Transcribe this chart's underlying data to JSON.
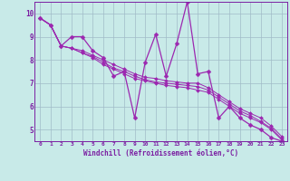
{
  "xlabel": "Windchill (Refroidissement éolien,°C)",
  "background_color": "#c8eae8",
  "grid_color": "#a0bcc8",
  "axis_color": "#7b1fa2",
  "line_color": "#9c27b0",
  "xlim": [
    -0.5,
    23.5
  ],
  "ylim": [
    4.5,
    10.5
  ],
  "yticks": [
    5,
    6,
    7,
    8,
    9,
    10
  ],
  "xticks": [
    0,
    1,
    2,
    3,
    4,
    5,
    6,
    7,
    8,
    9,
    10,
    11,
    12,
    13,
    14,
    15,
    16,
    17,
    18,
    19,
    20,
    21,
    22,
    23
  ],
  "series": [
    [
      9.8,
      9.5,
      8.6,
      9.0,
      9.0,
      8.4,
      8.1,
      7.3,
      7.5,
      5.5,
      7.9,
      9.1,
      7.3,
      8.7,
      10.5,
      7.4,
      7.5,
      5.5,
      6.0,
      5.5,
      5.2,
      5.0,
      4.65,
      4.5
    ],
    [
      9.8,
      9.5,
      8.6,
      8.5,
      8.4,
      8.2,
      8.0,
      7.8,
      7.6,
      7.4,
      7.25,
      7.2,
      7.1,
      7.05,
      7.0,
      7.0,
      6.8,
      6.5,
      6.2,
      5.9,
      5.7,
      5.5,
      5.15,
      4.7
    ],
    [
      9.8,
      9.5,
      8.6,
      8.5,
      8.3,
      8.15,
      7.9,
      7.65,
      7.5,
      7.3,
      7.15,
      7.05,
      7.0,
      6.95,
      6.9,
      6.85,
      6.7,
      6.4,
      6.1,
      5.8,
      5.6,
      5.35,
      5.05,
      4.6
    ],
    [
      9.8,
      9.5,
      8.6,
      8.5,
      8.3,
      8.1,
      7.8,
      7.6,
      7.4,
      7.2,
      7.1,
      7.0,
      6.9,
      6.85,
      6.8,
      6.7,
      6.6,
      6.3,
      6.0,
      5.7,
      5.5,
      5.3,
      5.0,
      4.55
    ]
  ]
}
